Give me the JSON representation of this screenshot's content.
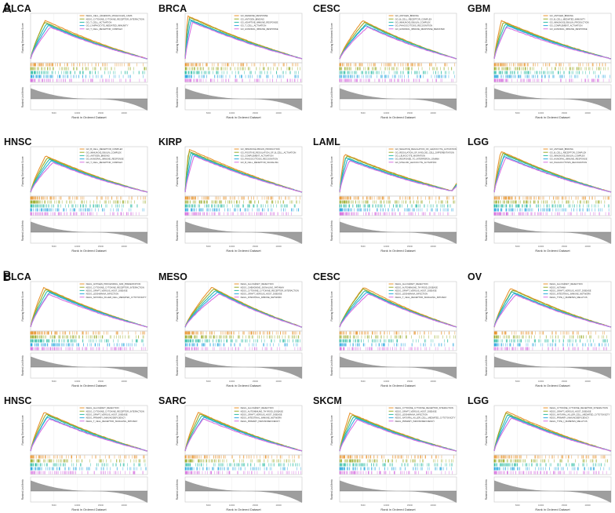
{
  "figure": {
    "panel_a_label": "A",
    "panel_b_label": "B"
  },
  "colors": [
    "#e8932b",
    "#9aab2a",
    "#2cbca4",
    "#2fa9e0",
    "#d770e0"
  ],
  "chart_data": [
    {
      "type": "line",
      "panel": "A",
      "title": "BLCA",
      "xlabel": "Rank in Ordered Dataset",
      "ylabel": "Running Enrichment Score",
      "nseries": 5,
      "peak": 0.82,
      "peak_pos": 0.14,
      "legend": [
        "KEGG_CELL_ADHESION_MOLECULES_CAMS",
        "KEGG_CYTOKINE_CYTOKINE_RECEPTOR_INTERACTION",
        "GO_T_CELL_ACTIVATION",
        "GO_LYMPHOCYTE_MEDIATED_IMMUNITY",
        "GO_T_CELL_RECEPTOR_COMPLEX"
      ],
      "end_spike": false
    },
    {
      "type": "line",
      "panel": "A",
      "title": "BRCA",
      "xlabel": "Rank in Ordered Dataset",
      "ylabel": "Running Enrichment Score",
      "nseries": 5,
      "peak": 0.92,
      "peak_pos": 0.04,
      "legend": [
        "GO_DEFENSE_RESPONSE",
        "GO_ANTIGEN_BINDING",
        "GO_ADAPTIVE_IMMUNE_RESPONSE",
        "GO_T_CELL_ACTIVATION",
        "GO_HUMORAL_IMMUNE_RESPONSE"
      ],
      "end_spike": false
    },
    {
      "type": "line",
      "panel": "A",
      "title": "CESC",
      "xlabel": "Rank in Ordered Dataset",
      "ylabel": "Running Enrichment Score",
      "nseries": 5,
      "peak": 0.82,
      "peak_pos": 0.22,
      "legend": [
        "GO_ANTIGEN_BINDING",
        "GO_B_CELL_RECEPTOR_COMPLEX",
        "GO_IMMUNOGLOBULIN_COMPLEX",
        "GO_PHAGOCYTOSIS_RECOGNITION",
        "GO_HUMORAL_IMMUNE_RESPONSE_MEDIATED"
      ],
      "end_spike": false
    },
    {
      "type": "line",
      "panel": "A",
      "title": "GBM",
      "xlabel": "Rank in Ordered Dataset",
      "ylabel": "Running Enrichment Score",
      "nseries": 5,
      "peak": 0.82,
      "peak_pos": 0.09,
      "legend": [
        "GO_ANTIGEN_BINDING",
        "GO_B_CELL_MEDIATED_IMMUNITY",
        "GO_IMMUNOGLOBULIN_PRODUCTION",
        "GO_COMPLEMENT_ACTIVATION",
        "GO_HUMORAL_IMMUNE_RESPONSE"
      ],
      "end_spike": false
    },
    {
      "type": "line",
      "panel": "A",
      "title": "HNSC",
      "xlabel": "Rank in Ordered Dataset",
      "ylabel": "Running Enrichment Score",
      "nseries": 5,
      "peak": 0.78,
      "peak_pos": 0.16,
      "legend": [
        "GO_B_CELL_RECEPTOR_COMPLEX",
        "GO_IMMUNOGLOBULIN_COMPLEX",
        "GO_ANTIGEN_BINDING",
        "GO_HUMORAL_IMMUNE_RESPONSE",
        "GO_T_CELL_RECEPTOR_COMPLEX"
      ],
      "end_spike": false
    },
    {
      "type": "line",
      "panel": "A",
      "title": "KIRP",
      "xlabel": "Rank in Ordered Dataset",
      "ylabel": "Running Enrichment Score",
      "nseries": 5,
      "peak": 0.92,
      "peak_pos": 0.05,
      "legend": [
        "GO_IMMUNOGLOBULIN_PRODUCTION",
        "GO_POSITIVE_REGULATION_OF_B_CELL_ACTIVATION",
        "GO_COMPLEMENT_ACTIVATION",
        "GO_PHAGOCYTOSIS_RECOGNITION",
        "GO_B_CELL_RECEPTOR_SIGNALING"
      ],
      "end_spike": false
    },
    {
      "type": "line",
      "panel": "A",
      "title": "LAML",
      "xlabel": "Rank in Ordered Dataset",
      "ylabel": "Running Enrichment Score",
      "nseries": 5,
      "peak": 0.82,
      "peak_pos": 0.06,
      "legend": [
        "GO_NEGATIVE_REGULATION_OF_LEUKOCYTE_ACTIVATION",
        "GO_REGULATION_OF_MYELOID_CELL_DIFFERENTIATION",
        "GO_LEUKOCYTE_MIGRATION",
        "GO_RESPONSE_TO_INTERFERON_GAMMA",
        "GO_MYELOID_LEUKOCYTE_ACTIVATION"
      ],
      "end_spike": true
    },
    {
      "type": "line",
      "panel": "A",
      "title": "LGG",
      "xlabel": "Rank in Ordered Dataset",
      "ylabel": "Running Enrichment Score",
      "nseries": 5,
      "peak": 0.88,
      "peak_pos": 0.08,
      "legend": [
        "GO_ANTIGEN_BINDING",
        "GO_B_CELL_RECEPTOR_COMPLEX",
        "GO_IMMUNOGLOBULIN_COMPLEX",
        "GO_HUMORAL_IMMUNE_RESPONSE",
        "GO_PHAGOCYTOSIS_RECOGNITION"
      ],
      "end_spike": false
    },
    {
      "type": "line",
      "panel": "B",
      "title": "BLCA",
      "xlabel": "Rank in Ordered Dataset",
      "ylabel": "Running Enrichment Score",
      "nseries": 5,
      "peak": 0.85,
      "peak_pos": 0.14,
      "legend": [
        "KEGG_ANTIGEN_PROCESSING_AND_PRESENTATION",
        "KEGG_CYTOKINE_CYTOKINE_RECEPTOR_INTERACTION",
        "KEGG_GRAFT_VERSUS_HOST_DISEASE",
        "KEGG_LEISHMANIA_INFECTION",
        "KEGG_NATURAL_KILLER_CELL_MEDIATED_CYTOTOXICITY"
      ],
      "end_spike": false
    },
    {
      "type": "line",
      "panel": "B",
      "title": "MESO",
      "xlabel": "Rank in Ordered Dataset",
      "ylabel": "Running Enrichment Score",
      "nseries": 5,
      "peak": 0.86,
      "peak_pos": 0.26,
      "legend": [
        "KEGG_ALLOGRAFT_REJECTION",
        "KEGG_CHEMOKINE_SIGNALING_PATHWAY",
        "KEGG_CYTOKINE_CYTOKINE_RECEPTOR_INTERACTION",
        "KEGG_GRAFT_VERSUS_HOST_DISEASE",
        "KEGG_INTESTINAL_IMMUNE_NETWORK"
      ],
      "end_spike": false
    },
    {
      "type": "line",
      "panel": "B",
      "title": "CESC",
      "xlabel": "Rank in Ordered Dataset",
      "ylabel": "Running Enrichment Score",
      "nseries": 5,
      "peak": 0.86,
      "peak_pos": 0.22,
      "legend": [
        "KEGG_ALLOGRAFT_REJECTION",
        "KEGG_AUTOIMMUNE_THYROID_DISEASE",
        "KEGG_GRAFT_VERSUS_HOST_DISEASE",
        "KEGG_LEISHMANIA_INFECTION",
        "KEGG_T_CELL_RECEPTOR_SIGNALING_PATHWAY"
      ],
      "end_spike": false
    },
    {
      "type": "line",
      "panel": "B",
      "title": "OV",
      "xlabel": "Rank in Ordered Dataset",
      "ylabel": "Running Enrichment Score",
      "nseries": 5,
      "peak": 0.84,
      "peak_pos": 0.16,
      "legend": [
        "KEGG_ALLOGRAFT_REJECTION",
        "KEGG_ASTHMA",
        "KEGG_GRAFT_VERSUS_HOST_DISEASE",
        "KEGG_INTESTINAL_IMMUNE_NETWORK",
        "KEGG_TYPE_I_DIABETES_MELLITUS"
      ],
      "end_spike": false
    },
    {
      "type": "line",
      "panel": "B",
      "title": "HNSC",
      "xlabel": "Rank in Ordered Dataset",
      "ylabel": "Running Enrichment Score",
      "nseries": 5,
      "peak": 0.84,
      "peak_pos": 0.14,
      "legend": [
        "KEGG_ALLOGRAFT_REJECTION",
        "KEGG_CYTOKINE_CYTOKINE_RECEPTOR_INTERACTION",
        "KEGG_GRAFT_VERSUS_HOST_DISEASE",
        "KEGG_PRIMARY_IMMUNODEFICIENCY",
        "KEGG_T_CELL_RECEPTOR_SIGNALING_PATHWAY"
      ],
      "end_spike": false
    },
    {
      "type": "line",
      "panel": "B",
      "title": "SARC",
      "xlabel": "Rank in Ordered Dataset",
      "ylabel": "Running Enrichment Score",
      "nseries": 5,
      "peak": 0.84,
      "peak_pos": 0.14,
      "legend": [
        "KEGG_ALLOGRAFT_REJECTION",
        "KEGG_AUTOIMMUNE_THYROID_DISEASE",
        "KEGG_GRAFT_VERSUS_HOST_DISEASE",
        "KEGG_INTESTINAL_IMMUNE_NETWORK",
        "KEGG_PRIMARY_IMMUNODEFICIENCY"
      ],
      "end_spike": false
    },
    {
      "type": "line",
      "panel": "B",
      "title": "SKCM",
      "xlabel": "Rank in Ordered Dataset",
      "ylabel": "Running Enrichment Score",
      "nseries": 5,
      "peak": 0.82,
      "peak_pos": 0.12,
      "legend": [
        "KEGG_CYTOKINE_CYTOKINE_RECEPTOR_INTERACTION",
        "KEGG_GRAFT_VERSUS_HOST_DISEASE",
        "KEGG_LEISHMANIA_INFECTION",
        "KEGG_NATURAL_KILLER_CELL_MEDIATED_CYTOTOXICITY",
        "KEGG_PRIMARY_IMMUNODEFICIENCY"
      ],
      "end_spike": false
    },
    {
      "type": "line",
      "panel": "B",
      "title": "LGG",
      "xlabel": "Rank in Ordered Dataset",
      "ylabel": "Running Enrichment Score",
      "nseries": 5,
      "peak": 0.86,
      "peak_pos": 0.12,
      "legend": [
        "KEGG_CYTOKINE_CYTOKINE_RECEPTOR_INTERACTION",
        "KEGG_GRAFT_VERSUS_HOST_DISEASE",
        "KEGG_NATURAL_KILLER_CELL_MEDIATED_CYTOTOXICITY",
        "KEGG_PRIMARY_IMMUNODEFICIENCY",
        "KEGG_TYPE_I_DIABETES_MELLITUS"
      ],
      "end_spike": false
    }
  ]
}
